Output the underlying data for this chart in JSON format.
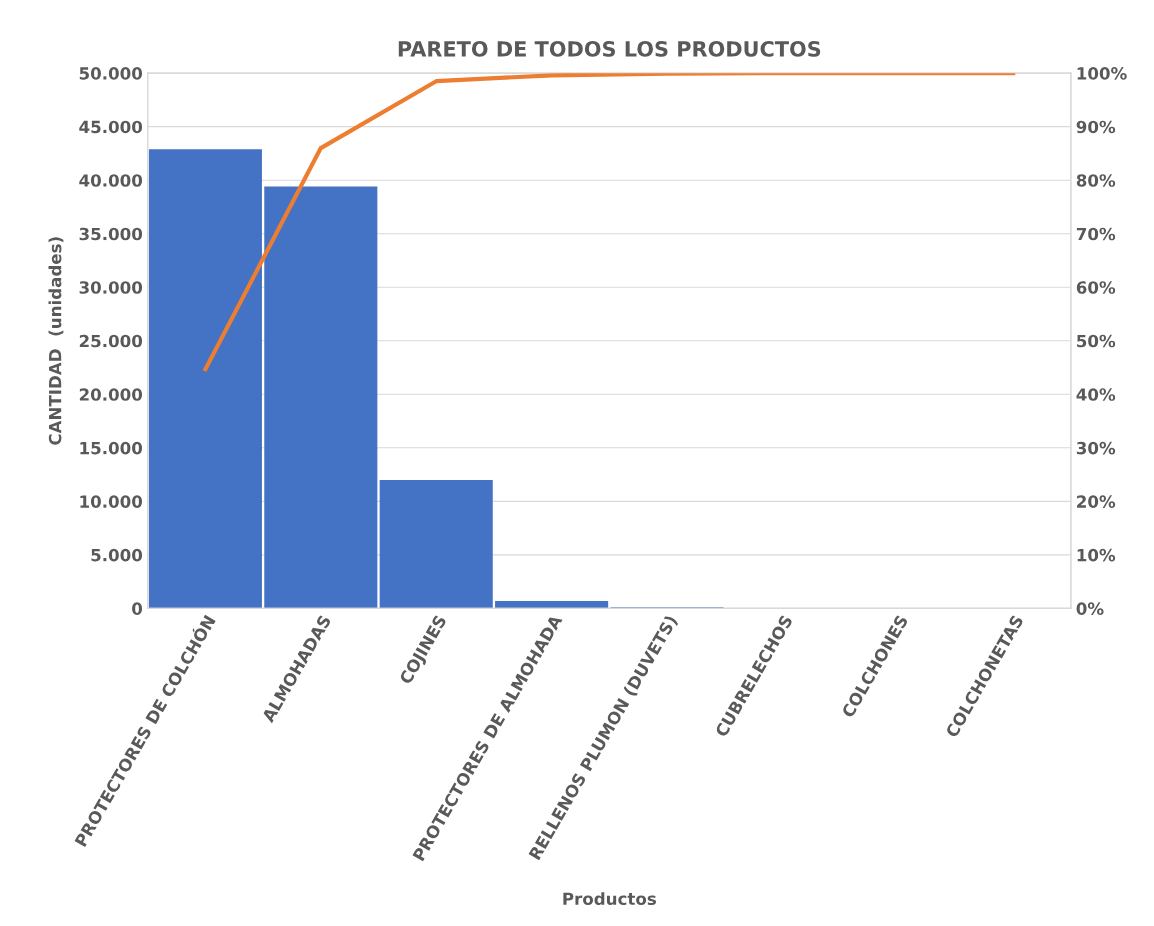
{
  "chart_data": {
    "type": "bar",
    "title": "PARETO DE TODOS LOS PRODUCTOS",
    "xlabel": "Productos",
    "ylabel": "CANTIDAD  (unidades)",
    "categories": [
      "PROTECTORES DE COLCHÓN",
      "ALMOHADAS",
      "COJINES",
      "PROTECTORES DE ALMOHADA",
      "RELLENOS PLUMON (DUVETS)",
      "CUBRELECHOS",
      "COLCHONES",
      "COLCHONETAS"
    ],
    "series": [
      {
        "color": "#4472c4",
        "values": [
          42900,
          39400,
          12000,
          700,
          100,
          0,
          0,
          0
        ]
      },
      {
        "type": "line",
        "axis": "y2",
        "color": "#ed7d31",
        "values": [
          44.7,
          86,
          98.5,
          99.6,
          99.9,
          100,
          100,
          100
        ]
      }
    ],
    "ylim": [
      0,
      50000
    ],
    "yticks": [
      {
        "value": 0,
        "label": "0"
      },
      {
        "value": 5000,
        "label": "5.000"
      },
      {
        "value": 10000,
        "label": "10.000"
      },
      {
        "value": 15000,
        "label": "15.000"
      },
      {
        "value": 20000,
        "label": "20.000"
      },
      {
        "value": 25000,
        "label": "25.000"
      },
      {
        "value": 30000,
        "label": "30.000"
      },
      {
        "value": 35000,
        "label": "35.000"
      },
      {
        "value": 40000,
        "label": "40.000"
      },
      {
        "value": 45000,
        "label": "45.000"
      },
      {
        "value": 50000,
        "label": "50.000"
      }
    ],
    "y2lim": [
      0,
      100
    ],
    "y2ticks": [
      {
        "value": 0,
        "label": "0%"
      },
      {
        "value": 10,
        "label": "10%"
      },
      {
        "value": 20,
        "label": "20%"
      },
      {
        "value": 30,
        "label": "30%"
      },
      {
        "value": 40,
        "label": "40%"
      },
      {
        "value": 50,
        "label": "50%"
      },
      {
        "value": 60,
        "label": "60%"
      },
      {
        "value": 70,
        "label": "70%"
      },
      {
        "value": 80,
        "label": "80%"
      },
      {
        "value": 90,
        "label": "90%"
      },
      {
        "value": 100,
        "label": "100%"
      }
    ],
    "grid": "y"
  }
}
